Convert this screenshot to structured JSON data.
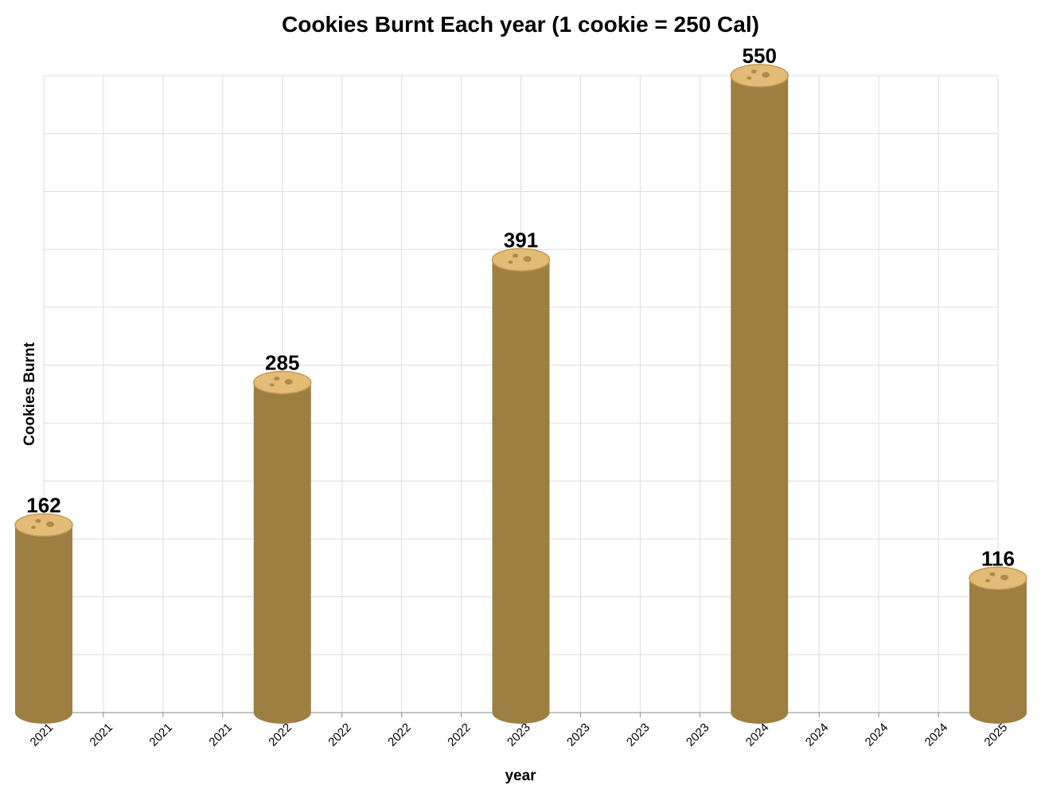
{
  "chart_data": {
    "type": "bar",
    "title": "Cookies Burnt Each year (1 cookie = 250 Cal)",
    "xlabel": "year",
    "ylabel": "Cookies Burnt",
    "categories": [
      "2021",
      "2022",
      "2023",
      "2024",
      "2025"
    ],
    "values": [
      162,
      285,
      391,
      550,
      116
    ],
    "x": [
      2021,
      2022,
      2023,
      2024,
      2025
    ],
    "x_tick_labels": [
      "2021",
      "2021",
      "2021",
      "2021",
      "2022",
      "2022",
      "2022",
      "2022",
      "2023",
      "2023",
      "2023",
      "2023",
      "2024",
      "2024",
      "2024",
      "2024",
      "2025"
    ],
    "xlim": [
      2021,
      2025
    ],
    "ylim": [
      0,
      550
    ],
    "y_gridlines": 11,
    "grid": true,
    "legend": "none",
    "mark": "cookie-stack cylinder",
    "colors": {
      "bar_body": "#9e7f43",
      "cookie_top": "#e2bb76",
      "cookie_rim": "#c49a52",
      "chips": "#b08a4a",
      "grid": "#dddddd",
      "axis": "#888888"
    }
  }
}
